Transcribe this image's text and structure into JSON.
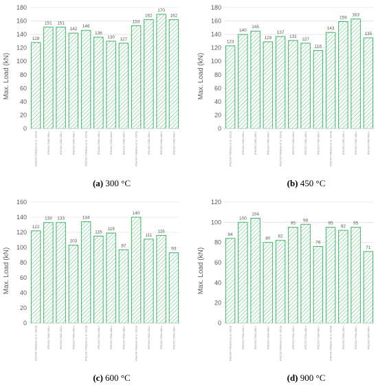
{
  "colors": {
    "bar_stroke": "#3cb464",
    "hatch": "#3cb464",
    "grid": "#d9d9d9",
    "text": "#595959"
  },
  "chart_data": [
    {
      "type": "bar",
      "caption_letter": "(a)",
      "caption_text": " 300 °C",
      "ylabel": "Max. Load (kN)",
      "ylim": [
        0,
        180
      ],
      "yticks": [
        0,
        20,
        40,
        60,
        80,
        100,
        120,
        140,
        160,
        180
      ],
      "grid": true,
      "categories": [
        "IPE200-T000(Hu et al. 2023)",
        "IPE200-T000-200-r",
        "IPE200-T000-400-r",
        "IPE200-T000-600-r",
        "IPE200-T000(Hu et al. 2023)",
        "IPE200-T000-400-r",
        "IPE200-T000-600-r",
        "IPE220-T000-600-r",
        "IPE240-T000(Hu et al. 2023)",
        "IPE240-T000-200-r",
        "IPE240-T000-400-r",
        "IPE240-T000-600-r"
      ],
      "values": [
        128,
        151,
        151,
        142,
        146,
        136,
        130,
        127,
        153,
        162,
        170,
        162
      ]
    },
    {
      "type": "bar",
      "caption_letter": "(b)",
      "caption_text": " 450 °C",
      "ylabel": "Max. Load (kN)",
      "ylim": [
        0,
        180
      ],
      "yticks": [
        0,
        20,
        40,
        60,
        80,
        100,
        120,
        140,
        160,
        180
      ],
      "grid": true,
      "categories": [
        "IPE200-T450(Hu et al. 2023)",
        "IPE200-T450-200-r",
        "IPE200-T450-400-r",
        "IPE200-T450-600-r",
        "IPE220-T450(Hu et al. 2023)",
        "IPE220-T450-200-r",
        "IPE220-T450-400-r",
        "IPE220-T450-600-r",
        "IPE240-T450(Hu et al. 2023)",
        "IPE240-T450-200-r",
        "IPE240-T450-400-r",
        "IPE240-T450-600-r"
      ],
      "values": [
        123,
        140,
        145,
        129,
        137,
        131,
        127,
        116,
        143,
        159,
        163,
        135
      ]
    },
    {
      "type": "bar",
      "caption_letter": "(c)",
      "caption_text": " 600 °C",
      "ylabel": "Max. Load (kN)",
      "ylim": [
        0,
        160
      ],
      "yticks": [
        0,
        20,
        40,
        60,
        80,
        100,
        120,
        140,
        160
      ],
      "grid": true,
      "categories": [
        "IPE200-T600(Hu et al. 2023)",
        "IPE200-T600-200-r",
        "IPE200-T600-400-r",
        "IPE200-T600-600-r",
        "IPE220-T600(Hu et al. 2023)",
        "IPE220-T600-200-r",
        "IPE220-T600-400-r",
        "IPE220-T600-600-r",
        "IPE240-T600(Hu et al. 2023)",
        "IPE240-T600-200-r",
        "IPE240-T600-400-r",
        "IPE240-T600-600-r"
      ],
      "values": [
        122,
        133,
        133,
        103,
        134,
        115,
        119,
        97,
        140,
        111,
        116,
        93
      ]
    },
    {
      "type": "bar",
      "caption_letter": "(d)",
      "caption_text": " 900 °C",
      "ylabel": "Max. Load (kN)",
      "ylim": [
        0,
        120
      ],
      "yticks": [
        0,
        20,
        40,
        60,
        80,
        100,
        120
      ],
      "grid": true,
      "categories": [
        "IPE200-T900(Hu et al. 2023)",
        "IPE200-T900-200-r",
        "IPE200-T900-400-r",
        "IPE200-T900-600-r",
        "IPE220-T900(Hu et al. 2023)",
        "IPE220-T900-200-r",
        "IPE220-T900-400-r",
        "IPE220-T900-600-r",
        "IPE240-T900(Hu et al. 2023)",
        "IPE240-T900-200-r",
        "IPE240-T900-400-r",
        "IPE240-T900-600-r"
      ],
      "values": [
        84,
        100,
        104,
        80,
        82,
        95,
        98,
        76,
        95,
        92,
        95,
        71
      ]
    }
  ]
}
